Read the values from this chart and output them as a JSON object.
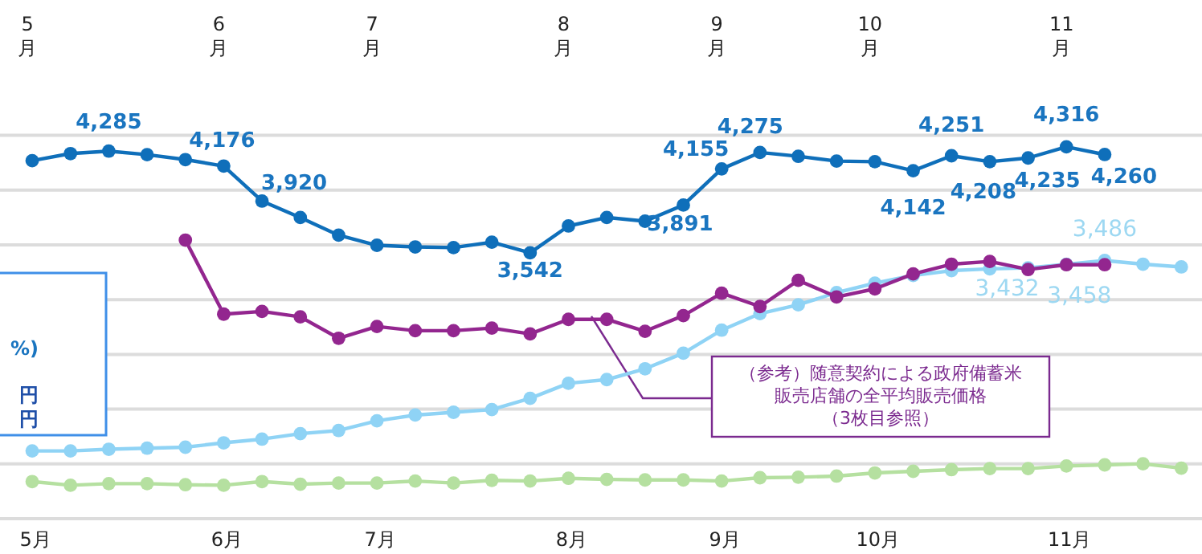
{
  "chart_data": {
    "type": "line",
    "categories": [
      "5月",
      null,
      null,
      null,
      null,
      "6月",
      null,
      null,
      null,
      "7月",
      null,
      null,
      null,
      null,
      "8月",
      null,
      null,
      null,
      "9月",
      null,
      null,
      null,
      "10月",
      null,
      null,
      null,
      null,
      "11月",
      null,
      null,
      null
    ],
    "ylim": [
      1600,
      4400
    ],
    "yticks": [
      {
        "value": 1600,
        "label": null
      },
      {
        "value": 2000,
        "label": null
      },
      {
        "value": 2400,
        "label": null
      },
      {
        "value": 2800,
        "label": null
      },
      {
        "value": 3200,
        "label": null
      },
      {
        "value": 3600,
        "label": null
      },
      {
        "value": 4000,
        "label": null
      },
      {
        "value": 4400,
        "label": null
      }
    ],
    "tick_labels": "x",
    "grid": "y",
    "marker": "circle",
    "line_style": "solid",
    "series": [
      {
        "color": "#0f6fba",
        "values": [
          4215,
          4267,
          4285,
          4259,
          4223,
          4176,
          3920,
          3800,
          3671,
          3597,
          3585,
          3580,
          3620,
          3542,
          3738,
          3800,
          3773,
          3891,
          4155,
          4275,
          4247,
          4212,
          4208,
          4142,
          4251,
          4208,
          4235,
          4316,
          4260,
          null,
          null
        ],
        "value_labels": [
          null,
          null,
          "4,285",
          null,
          null,
          "4,176",
          "3,920",
          null,
          null,
          null,
          null,
          null,
          null,
          "3,542",
          null,
          null,
          null,
          "3,891",
          "4,155",
          "4,275",
          null,
          null,
          null,
          "4,142",
          "4,251",
          "4,208",
          "4,235",
          "4,316",
          "4,260",
          null,
          null
        ]
      },
      {
        "color": "#8fd3f5",
        "values": [
          2095,
          2095,
          2107,
          2115,
          2122,
          2154,
          2181,
          2221,
          2244,
          2315,
          2357,
          2377,
          2397,
          2479,
          2589,
          2616,
          2695,
          2809,
          2977,
          3098,
          3162,
          3251,
          3321,
          3377,
          3412,
          3425,
          3432,
          3458,
          3486,
          3459,
          3439
        ],
        "value_labels": [
          null,
          null,
          null,
          null,
          null,
          null,
          null,
          null,
          null,
          null,
          null,
          null,
          null,
          null,
          null,
          null,
          null,
          null,
          null,
          null,
          null,
          null,
          null,
          null,
          null,
          null,
          "3,432",
          "3,458",
          "3,486",
          null,
          null
        ]
      },
      {
        "color": "#93268f",
        "values": [
          null,
          null,
          null,
          null,
          3635,
          3094,
          3114,
          3074,
          2918,
          3004,
          2973,
          2973,
          2992,
          2950,
          3056,
          3056,
          2969,
          3083,
          3247,
          3150,
          3341,
          3220,
          3279,
          3388,
          3459,
          3479,
          3420,
          3455,
          3455,
          null,
          null
        ]
      },
      {
        "color": "#b5e0a0",
        "values": [
          1871,
          1844,
          1856,
          1856,
          1848,
          1844,
          1871,
          1852,
          1860,
          1860,
          1875,
          1860,
          1880,
          1875,
          1895,
          1887,
          1883,
          1883,
          1875,
          1899,
          1903,
          1911,
          1934,
          1946,
          1958,
          1966,
          1966,
          1985,
          1993,
          2001,
          1969
        ]
      }
    ],
    "annotations": [
      "（参考）随意契約による政府備蓄米販売店舗の全平均販売価格（3枚目参照）",
      "%)",
      "円",
      "円",
      "5月",
      "6月",
      "7月",
      "8月",
      "9月",
      "10月",
      "11月"
    ]
  }
}
